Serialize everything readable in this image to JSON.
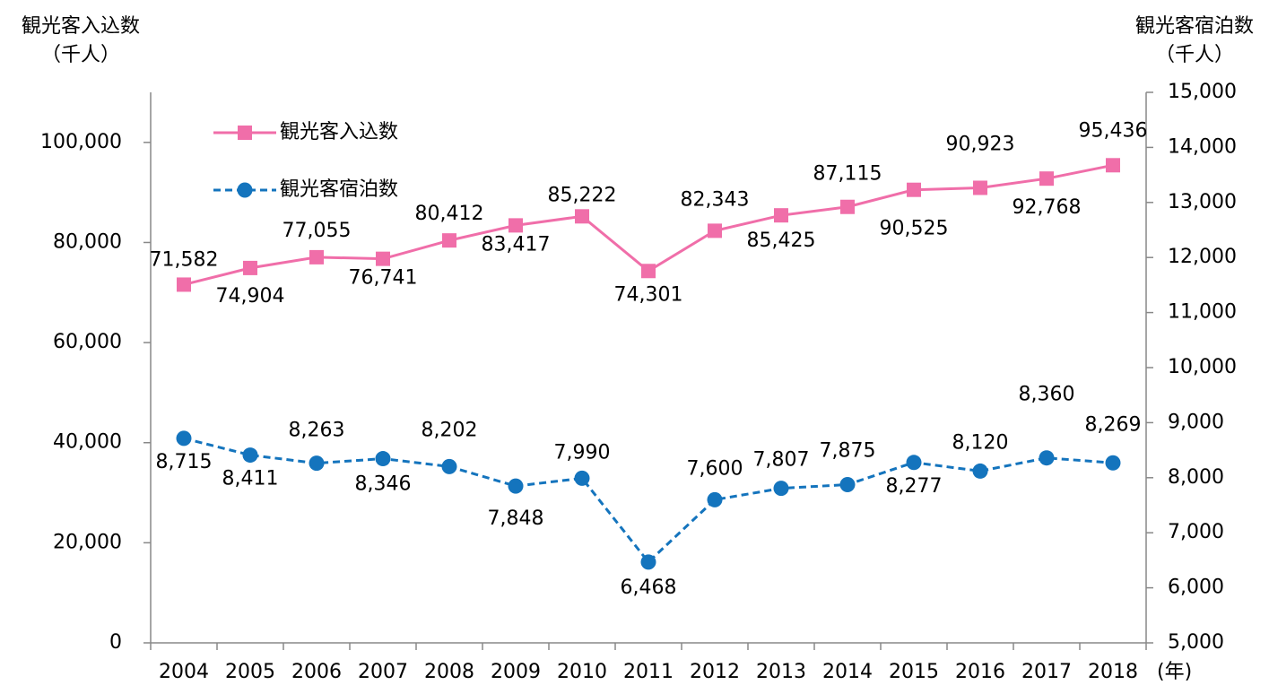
{
  "chart_data": {
    "type": "line",
    "y_label": "観光客入込数",
    "y_unit": "（千人）",
    "y2_label": "観光客宿泊数",
    "y2_unit": "（千人）",
    "x_unit": "(年)",
    "categories": [
      "2004",
      "2005",
      "2006",
      "2007",
      "2008",
      "2009",
      "2010",
      "2011",
      "2012",
      "2013",
      "2014",
      "2015",
      "2016",
      "2017",
      "2018"
    ],
    "series": [
      {
        "name": "観光客入込数",
        "color": "#f06ea9",
        "marker": "square",
        "dash": false,
        "values": [
          71582,
          74904,
          77055,
          76741,
          80412,
          83417,
          85222,
          74301,
          82343,
          85425,
          87115,
          90525,
          90923,
          92768,
          95436
        ],
        "value_labels": [
          "71,582",
          "74,904",
          "77,055",
          "76,741",
          "80,412",
          "83,417",
          "85,222",
          "74,301",
          "82,343",
          "85,425",
          "87,115",
          "90,525",
          "90,923",
          "92,768",
          "95,436"
        ]
      },
      {
        "name": "観光客宿泊数",
        "color": "#1474bd",
        "marker": "circle",
        "dash": true,
        "axis": "y2",
        "values": [
          8715,
          8411,
          8263,
          8346,
          8202,
          7848,
          7990,
          6468,
          7600,
          7807,
          7875,
          8277,
          8120,
          8360,
          8269
        ],
        "value_labels": [
          "8,715",
          "8,411",
          "8,263",
          "8,346",
          "8,202",
          "7,848",
          "7,990",
          "6,468",
          "7,600",
          "7,807",
          "7,875",
          "8,277",
          "8,120",
          "8,360",
          "8,269"
        ]
      }
    ],
    "ylim": [
      0,
      110000
    ],
    "yticks": [
      0,
      {
        "value": 20000,
        "label": "20,000"
      },
      {
        "value": 40000,
        "label": "40,000"
      },
      {
        "value": 60000,
        "label": "60,000"
      },
      {
        "value": 80000,
        "label": "80,000"
      },
      {
        "value": 100000,
        "label": "100,000"
      }
    ],
    "y2lim": [
      5000,
      15000
    ],
    "y2ticks": [
      {
        "value": 5000,
        "label": "5,000"
      },
      {
        "value": 6000,
        "label": "6,000"
      },
      {
        "value": 7000,
        "label": "7,000"
      },
      {
        "value": 8000,
        "label": "8,000"
      },
      {
        "value": 9000,
        "label": "9,000"
      },
      {
        "value": 10000,
        "label": "10,000"
      },
      {
        "value": 11000,
        "label": "11,000"
      },
      {
        "value": 12000,
        "label": "12,000"
      },
      {
        "value": 13000,
        "label": "13,000"
      },
      {
        "value": 14000,
        "label": "14,000"
      },
      {
        "value": 15000,
        "label": "15,000"
      }
    ],
    "legend": "top-left"
  }
}
